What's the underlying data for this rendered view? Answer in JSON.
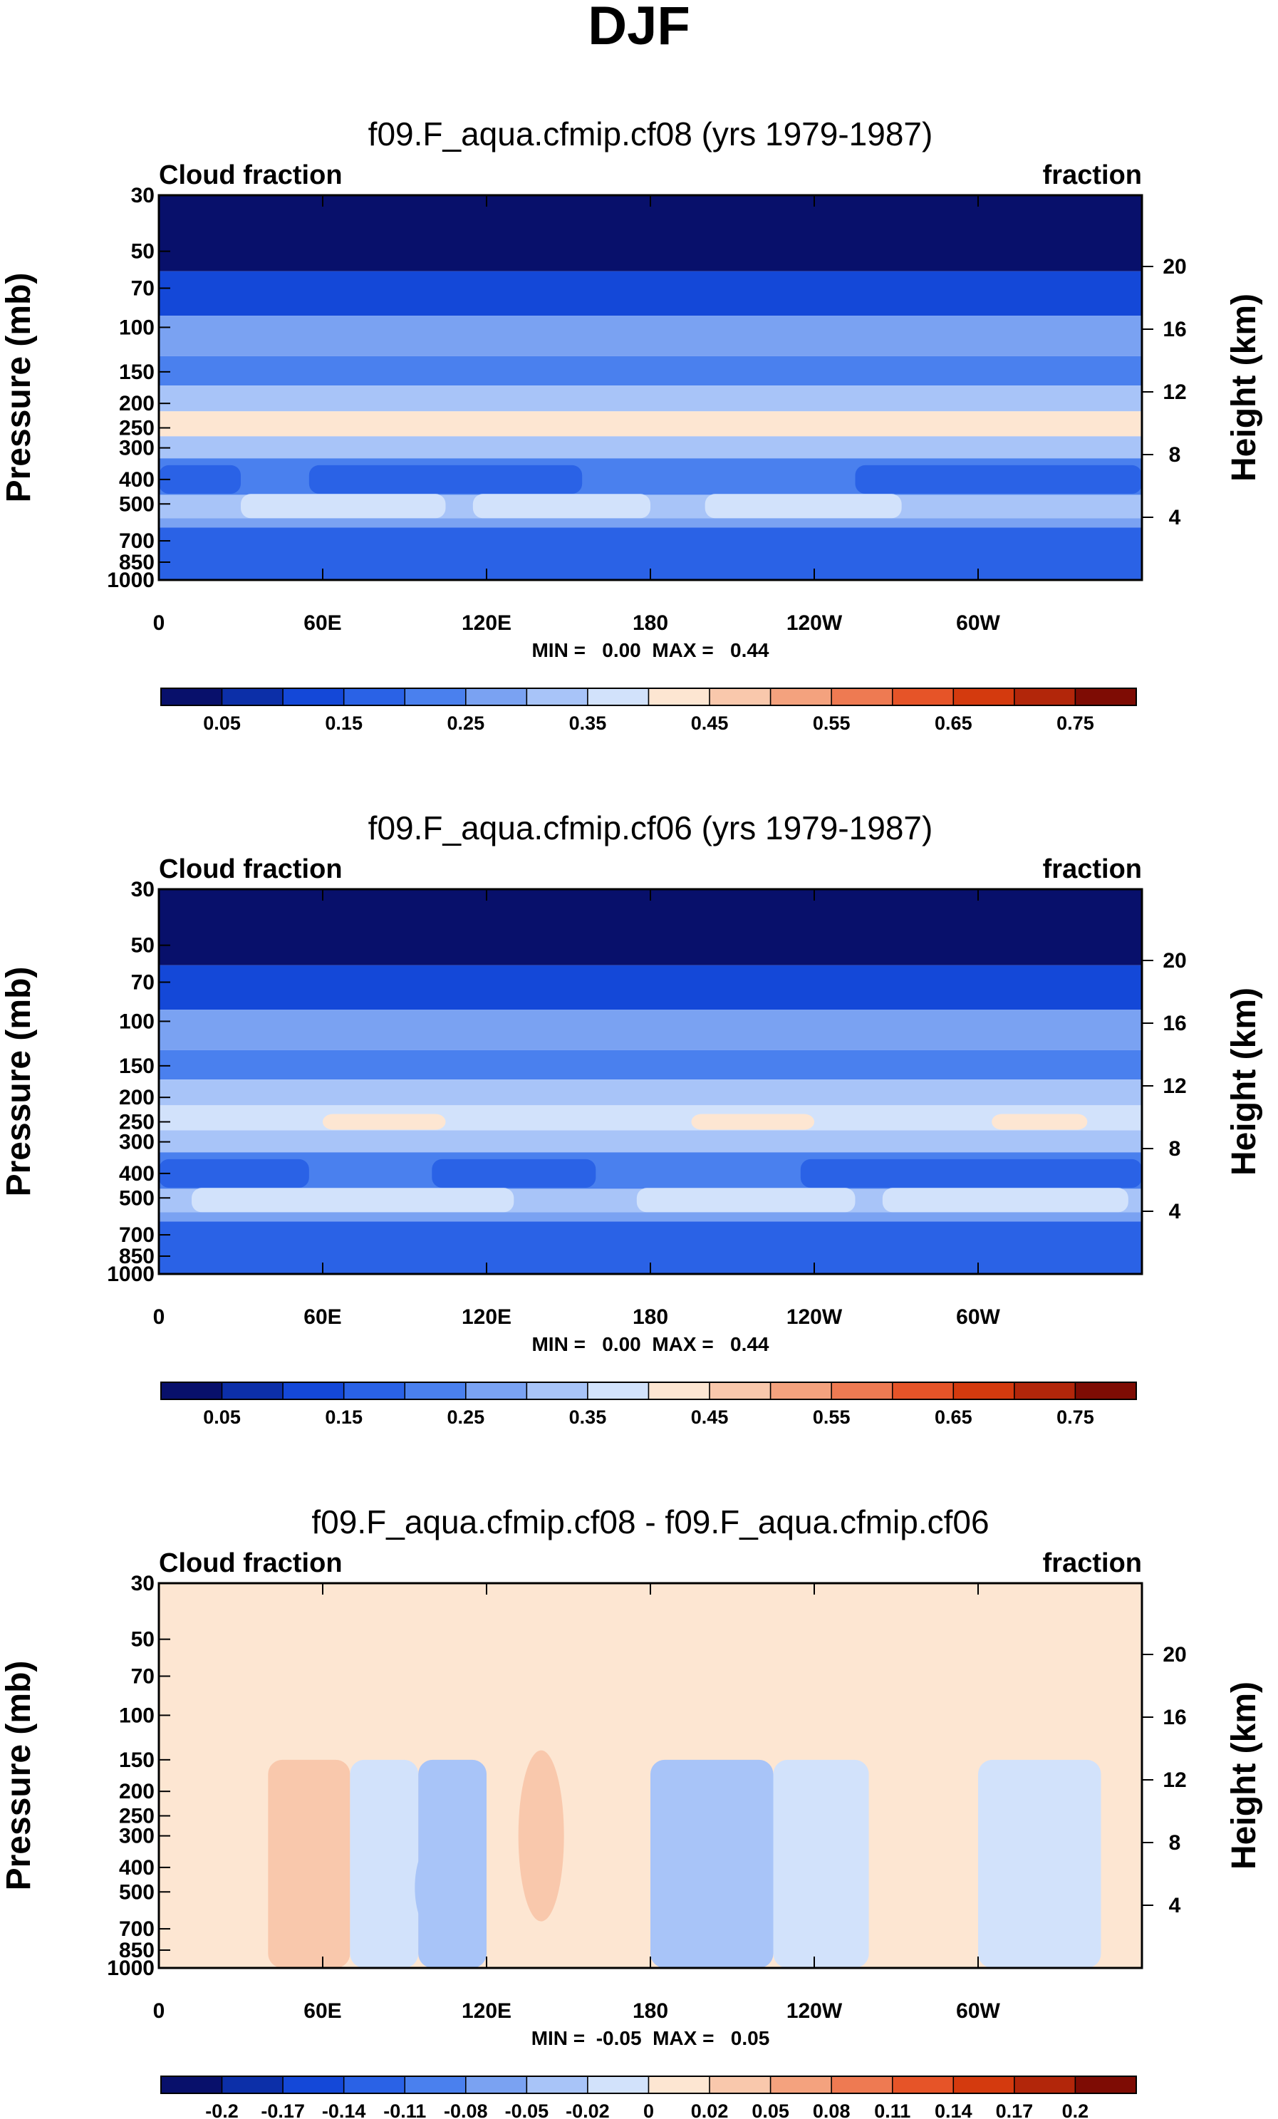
{
  "figure": {
    "title": "DJF"
  },
  "chart_data": [
    {
      "type": "contour",
      "title": "f09.F_aqua.cfmip.cf08 (yrs 1979-1987)",
      "left_label": "Cloud fraction",
      "right_label": "fraction",
      "xlabel": "",
      "ylabel": "Pressure (mb)",
      "ylabel_right": "Height (km)",
      "xticks": [
        "0",
        "60E",
        "120E",
        "180",
        "120W",
        "60W"
      ],
      "yticks": [
        "30",
        "50",
        "70",
        "100",
        "150",
        "200",
        "250",
        "300",
        "400",
        "500",
        "700",
        "850",
        "1000"
      ],
      "yticks_right": [
        "20",
        "16",
        "12",
        "8",
        "4"
      ],
      "stats": "MIN =   0.00  MAX =   0.44",
      "colorbar": {
        "ticks": [
          "0.05",
          "0.15",
          "0.25",
          "0.35",
          "0.45",
          "0.55",
          "0.65",
          "0.75"
        ],
        "colors": [
          "#08106b",
          "#0c2fa8",
          "#1448d8",
          "#2a62e6",
          "#4a80ee",
          "#7aa2f2",
          "#a8c4f8",
          "#d2e2fb",
          "#fde6d2",
          "#f9c8ac",
          "#f4a27e",
          "#ee7a52",
          "#e65428",
          "#d43a0e",
          "#b2260a",
          "#7e0c04"
        ]
      },
      "bands_note": "zonally uniform layers with cloud fraction levels by pressure",
      "layers": [
        {
          "p_top": 30,
          "p_bot": 60,
          "value": 0.02
        },
        {
          "p_top": 60,
          "p_bot": 90,
          "value": 0.12
        },
        {
          "p_top": 90,
          "p_bot": 130,
          "value": 0.27
        },
        {
          "p_top": 130,
          "p_bot": 170,
          "value": 0.22
        },
        {
          "p_top": 170,
          "p_bot": 215,
          "value": 0.32
        },
        {
          "p_top": 215,
          "p_bot": 270,
          "value": 0.41
        },
        {
          "p_top": 270,
          "p_bot": 330,
          "value": 0.33
        },
        {
          "p_top": 330,
          "p_bot": 460,
          "value": 0.22
        },
        {
          "p_top": 460,
          "p_bot": 570,
          "value": 0.32
        },
        {
          "p_top": 570,
          "p_bot": 620,
          "value": 0.26
        },
        {
          "p_top": 620,
          "p_bot": 1000,
          "value": 0.17
        }
      ]
    },
    {
      "type": "contour",
      "title": "f09.F_aqua.cfmip.cf06 (yrs 1979-1987)",
      "left_label": "Cloud fraction",
      "right_label": "fraction",
      "xlabel": "",
      "ylabel": "Pressure (mb)",
      "ylabel_right": "Height (km)",
      "xticks": [
        "0",
        "60E",
        "120E",
        "180",
        "120W",
        "60W"
      ],
      "yticks": [
        "30",
        "50",
        "70",
        "100",
        "150",
        "200",
        "250",
        "300",
        "400",
        "500",
        "700",
        "850",
        "1000"
      ],
      "yticks_right": [
        "20",
        "16",
        "12",
        "8",
        "4"
      ],
      "stats": "MIN =   0.00  MAX =   0.44",
      "colorbar": {
        "ticks": [
          "0.05",
          "0.15",
          "0.25",
          "0.35",
          "0.45",
          "0.55",
          "0.65",
          "0.75"
        ],
        "colors": [
          "#08106b",
          "#0c2fa8",
          "#1448d8",
          "#2a62e6",
          "#4a80ee",
          "#7aa2f2",
          "#a8c4f8",
          "#d2e2fb",
          "#fde6d2",
          "#f9c8ac",
          "#f4a27e",
          "#ee7a52",
          "#e65428",
          "#d43a0e",
          "#b2260a",
          "#7e0c04"
        ]
      },
      "bands_note": "zonally uniform layers with cloud fraction levels by pressure",
      "layers": [
        {
          "p_top": 30,
          "p_bot": 60,
          "value": 0.02
        },
        {
          "p_top": 60,
          "p_bot": 90,
          "value": 0.12
        },
        {
          "p_top": 90,
          "p_bot": 130,
          "value": 0.27
        },
        {
          "p_top": 130,
          "p_bot": 170,
          "value": 0.22
        },
        {
          "p_top": 170,
          "p_bot": 215,
          "value": 0.32
        },
        {
          "p_top": 215,
          "p_bot": 270,
          "value": 0.38
        },
        {
          "p_top": 270,
          "p_bot": 330,
          "value": 0.33
        },
        {
          "p_top": 330,
          "p_bot": 460,
          "value": 0.22
        },
        {
          "p_top": 460,
          "p_bot": 570,
          "value": 0.32
        },
        {
          "p_top": 570,
          "p_bot": 620,
          "value": 0.26
        },
        {
          "p_top": 620,
          "p_bot": 1000,
          "value": 0.17
        }
      ]
    },
    {
      "type": "contour",
      "title": "f09.F_aqua.cfmip.cf08 - f09.F_aqua.cfmip.cf06",
      "left_label": "Cloud fraction",
      "right_label": "fraction",
      "xlabel": "",
      "ylabel": "Pressure (mb)",
      "ylabel_right": "Height (km)",
      "xticks": [
        "0",
        "60E",
        "120E",
        "180",
        "120W",
        "60W"
      ],
      "yticks": [
        "30",
        "50",
        "70",
        "100",
        "150",
        "200",
        "250",
        "300",
        "400",
        "500",
        "700",
        "850",
        "1000"
      ],
      "yticks_right": [
        "20",
        "16",
        "12",
        "8",
        "4"
      ],
      "stats": "MIN =  -0.05  MAX =   0.05",
      "colorbar": {
        "ticks": [
          "-0.2",
          "-0.17",
          "-0.14",
          "-0.11",
          "-0.08",
          "-0.05",
          "-0.02",
          "0",
          "0.02",
          "0.05",
          "0.08",
          "0.11",
          "0.14",
          "0.17",
          "0.2"
        ],
        "colors": [
          "#08106b",
          "#0c2fa8",
          "#1448d8",
          "#2a62e6",
          "#4a80ee",
          "#7aa2f2",
          "#a8c4f8",
          "#d2e2fb",
          "#fde6d2",
          "#f9c8ac",
          "#f4a27e",
          "#ee7a52",
          "#e65428",
          "#d43a0e",
          "#b2260a",
          "#7e0c04"
        ]
      },
      "bands_note": "difference field: vertical columns alternating slightly positive/negative",
      "columns": [
        {
          "lon_start": 0,
          "lon_end": 40,
          "value": 0.01
        },
        {
          "lon_start": 40,
          "lon_end": 70,
          "value": 0.025
        },
        {
          "lon_start": 70,
          "lon_end": 95,
          "value": -0.01
        },
        {
          "lon_start": 95,
          "lon_end": 120,
          "value": -0.03
        },
        {
          "lon_start": 120,
          "lon_end": 160,
          "value": 0.015
        },
        {
          "lon_start": 160,
          "lon_end": 180,
          "value": 0.01
        },
        {
          "lon_start": 180,
          "lon_end": 225,
          "value": -0.035
        },
        {
          "lon_start": 225,
          "lon_end": 260,
          "value": -0.01
        },
        {
          "lon_start": 260,
          "lon_end": 300,
          "value": 0.01
        },
        {
          "lon_start": 300,
          "lon_end": 345,
          "value": -0.01
        },
        {
          "lon_start": 345,
          "lon_end": 360,
          "value": 0.02
        }
      ]
    }
  ]
}
